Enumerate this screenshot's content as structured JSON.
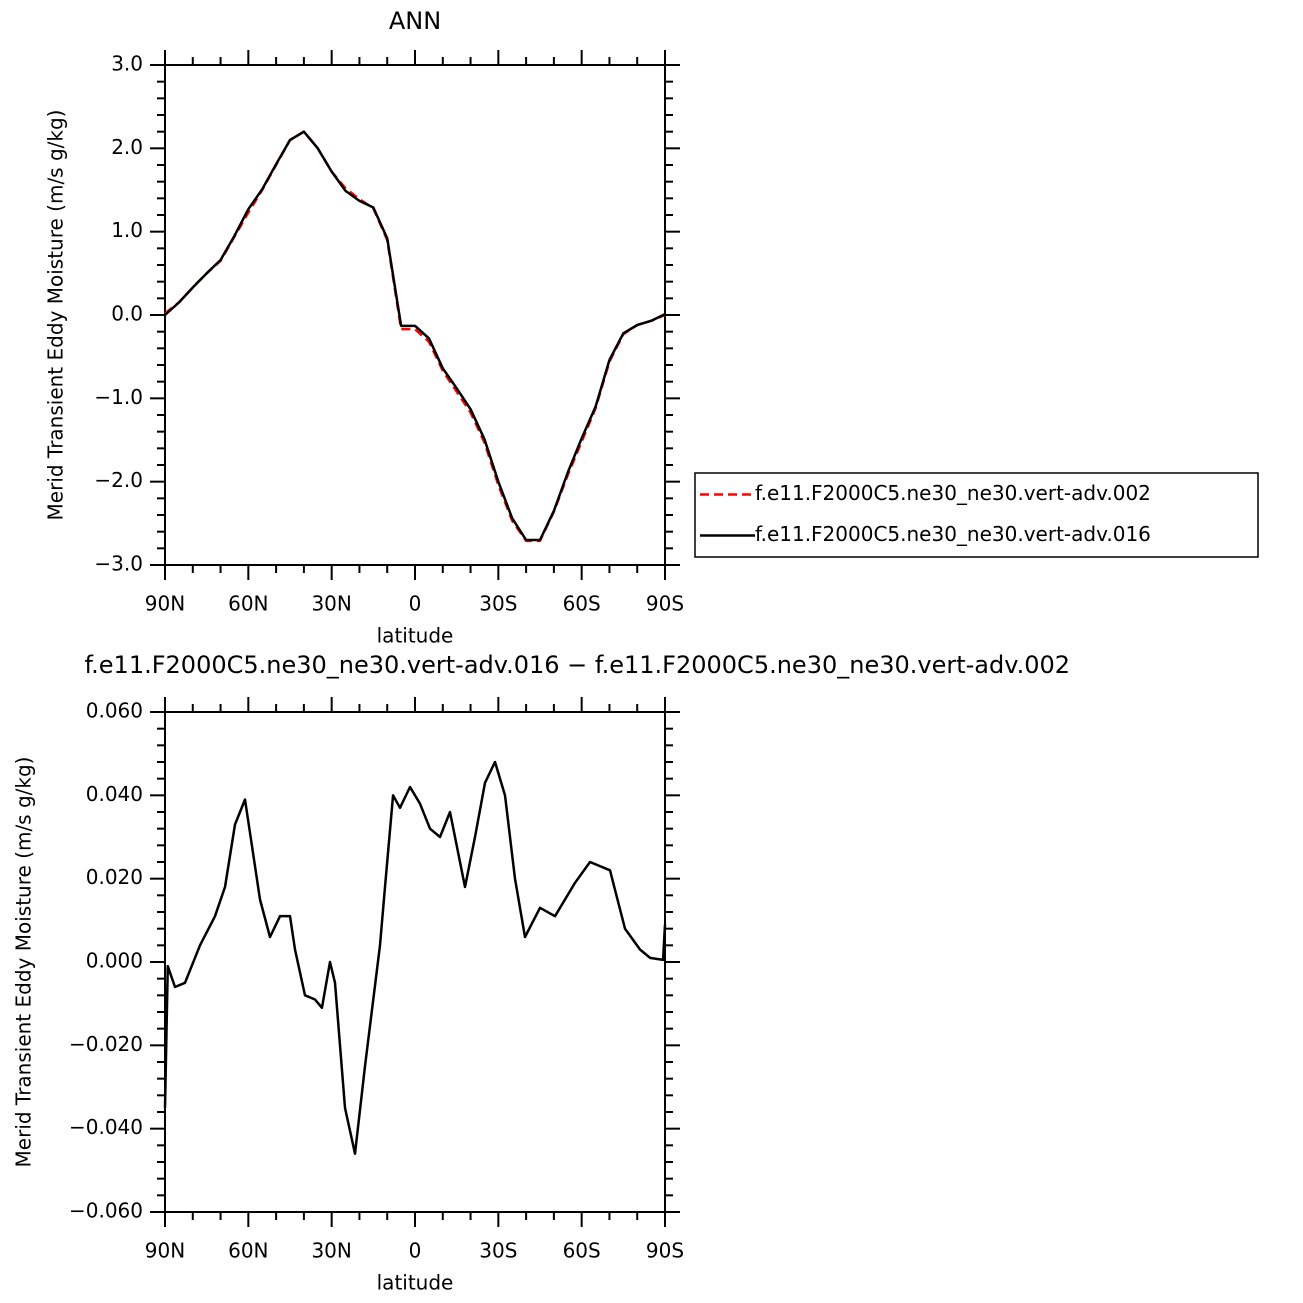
{
  "chart_data": [
    {
      "type": "line",
      "title": "ANN",
      "xlabel": "latitude",
      "ylabel": "Merid Transient Eddy Moisture (m/s g/kg)",
      "xlim": [
        90,
        -90
      ],
      "xticks": [
        {
          "value": 90,
          "label": "90N"
        },
        {
          "value": 60,
          "label": "60N"
        },
        {
          "value": 30,
          "label": "30N"
        },
        0,
        {
          "value": -30,
          "label": "30S"
        },
        {
          "value": -60,
          "label": "60S"
        },
        {
          "value": -90,
          "label": "90S"
        }
      ],
      "ylim": [
        -3,
        3
      ],
      "yticks": [
        {
          "value": 3,
          "label": "3.0"
        },
        {
          "value": 2,
          "label": "2.0"
        },
        {
          "value": 1,
          "label": "1.0"
        },
        {
          "value": 0,
          "label": "0.0"
        },
        {
          "value": -1,
          "label": "−1.0"
        },
        {
          "value": -2,
          "label": "−2.0"
        },
        {
          "value": -3,
          "label": "−3.0"
        }
      ],
      "legend": "right",
      "x": [
        90,
        85,
        80,
        75,
        70,
        65,
        60,
        55,
        50,
        45,
        40,
        35,
        30,
        25,
        20,
        15,
        10,
        5,
        0,
        -5,
        -10,
        -15,
        -20,
        -25,
        -30,
        -35,
        -40,
        -45,
        -50,
        -55,
        -60,
        -65,
        -70,
        -75,
        -80,
        -85,
        -90
      ],
      "series": [
        {
          "name": "f.e11.F2000C5.ne30_ne30.vert-adv.002",
          "color": "#ff0000",
          "line_style": "dashed",
          "values": [
            0.02,
            0.15,
            0.33,
            0.5,
            0.65,
            0.94,
            1.23,
            1.5,
            1.8,
            2.1,
            2.2,
            2.0,
            1.72,
            1.52,
            1.39,
            1.28,
            0.9,
            -0.17,
            -0.17,
            -0.32,
            -0.67,
            -0.92,
            -1.17,
            -1.53,
            -2.04,
            -2.47,
            -2.71,
            -2.71,
            -2.36,
            -1.92,
            -1.52,
            -1.12,
            -0.56,
            -0.23,
            -0.12,
            -0.07,
            0.0
          ]
        },
        {
          "name": "f.e11.F2000C5.ne30_ne30.vert-adv.016",
          "color": "#000000",
          "line_style": "solid",
          "values": [
            0.0,
            0.15,
            0.33,
            0.5,
            0.66,
            0.95,
            1.27,
            1.51,
            1.81,
            2.1,
            2.2,
            2.0,
            1.72,
            1.49,
            1.37,
            1.29,
            0.92,
            -0.13,
            -0.13,
            -0.28,
            -0.64,
            -0.88,
            -1.13,
            -1.49,
            -2.0,
            -2.44,
            -2.7,
            -2.7,
            -2.35,
            -1.89,
            -1.48,
            -1.1,
            -0.54,
            -0.22,
            -0.12,
            -0.07,
            0.01
          ]
        }
      ]
    },
    {
      "type": "line",
      "title": "f.e11.F2000C5.ne30_ne30.vert-adv.016 − f.e11.F2000C5.ne30_ne30.vert-adv.002",
      "xlabel": "latitude",
      "ylabel": "Merid Transient Eddy Moisture (m/s g/kg)",
      "xlim": [
        90,
        -90
      ],
      "xticks": [
        {
          "value": 90,
          "label": "90N"
        },
        {
          "value": 60,
          "label": "60N"
        },
        {
          "value": 30,
          "label": "30N"
        },
        0,
        {
          "value": -30,
          "label": "30S"
        },
        {
          "value": -60,
          "label": "60S"
        },
        {
          "value": -90,
          "label": "90S"
        }
      ],
      "ylim": [
        -0.06,
        0.06
      ],
      "yticks": [
        {
          "value": 0.06,
          "label": "0.060"
        },
        {
          "value": 0.04,
          "label": "0.040"
        },
        {
          "value": 0.02,
          "label": "0.020"
        },
        {
          "value": 0,
          "label": "0.000"
        },
        {
          "value": -0.02,
          "label": "−0.020"
        },
        {
          "value": -0.04,
          "label": "−0.040"
        },
        {
          "value": -0.06,
          "label": "−0.060"
        }
      ],
      "x": [
        90,
        89,
        86.4,
        82.8,
        77.4,
        72,
        68.4,
        64.8,
        61.2,
        55.8,
        52.2,
        48.6,
        45,
        43.2,
        39.6,
        36,
        33.5,
        30.6,
        28.8,
        25.2,
        21.6,
        18,
        12.6,
        10.8,
        7.9,
        5.4,
        1.8,
        -1.8,
        -5.4,
        -9,
        -12.6,
        -18,
        -21.6,
        -25.2,
        -28.8,
        -32.4,
        -36,
        -39.6,
        -45,
        -50.4,
        -57.6,
        -63,
        -70.2,
        -75.6,
        -81,
        -84.6,
        -89.3,
        -90
      ],
      "series": [
        {
          "name": null,
          "color": "#000000",
          "line_style": "solid",
          "values": [
            -0.035,
            -0.001,
            -0.006,
            -0.005,
            0.004,
            0.011,
            0.018,
            0.033,
            0.039,
            0.015,
            0.006,
            0.011,
            0.011,
            0.003,
            -0.008,
            -0.009,
            -0.011,
            0.0,
            -0.005,
            -0.035,
            -0.046,
            -0.025,
            0.004,
            0.018,
            0.04,
            0.037,
            0.042,
            0.038,
            0.032,
            0.03,
            0.036,
            0.018,
            0.03,
            0.043,
            0.048,
            0.04,
            0.02,
            0.006,
            0.013,
            0.011,
            0.019,
            0.024,
            0.022,
            0.008,
            0.003,
            0.001,
            0.0005,
            0.009
          ]
        }
      ]
    }
  ]
}
